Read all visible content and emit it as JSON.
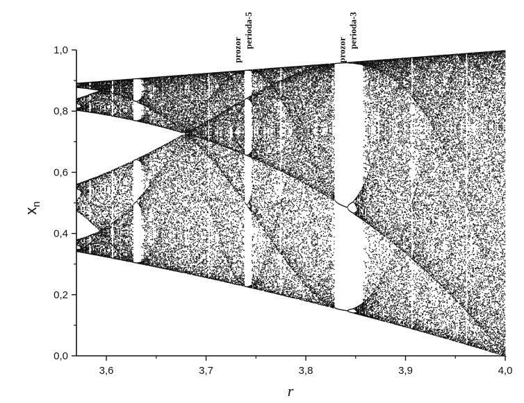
{
  "chart_data": {
    "type": "scatter",
    "description_kind": "bifurcation-diagram",
    "xlabel": "r",
    "ylabel_main": "x",
    "ylabel_sub": "n",
    "xlim": [
      3.57,
      4.0
    ],
    "ylim": [
      0.0,
      1.0
    ],
    "x_ticks": [
      {
        "value": 3.6,
        "label": "3,6"
      },
      {
        "value": 3.7,
        "label": "3,7"
      },
      {
        "value": 3.8,
        "label": "3,8"
      },
      {
        "value": 3.9,
        "label": "3,9"
      },
      {
        "value": 4.0,
        "label": "4,0"
      }
    ],
    "y_ticks": [
      {
        "value": 0.0,
        "label": "0,0"
      },
      {
        "value": 0.2,
        "label": "0,2"
      },
      {
        "value": 0.4,
        "label": "0,4"
      },
      {
        "value": 0.6,
        "label": "0,6"
      },
      {
        "value": 0.8,
        "label": "0,8"
      },
      {
        "value": 1.0,
        "label": "1,0"
      }
    ],
    "r_range_plotted": [
      3.57,
      4.0
    ],
    "map": "logistic x(n+1) = r*x(n)*(1-x(n))",
    "annotations": [
      {
        "line1": "prozor",
        "line2": "perioda-5",
        "r": 3.74
      },
      {
        "line1": "prozor",
        "line2": "perioda-3",
        "r": 3.845
      }
    ],
    "grid": false,
    "legend": "none",
    "point_color": "#111111"
  }
}
